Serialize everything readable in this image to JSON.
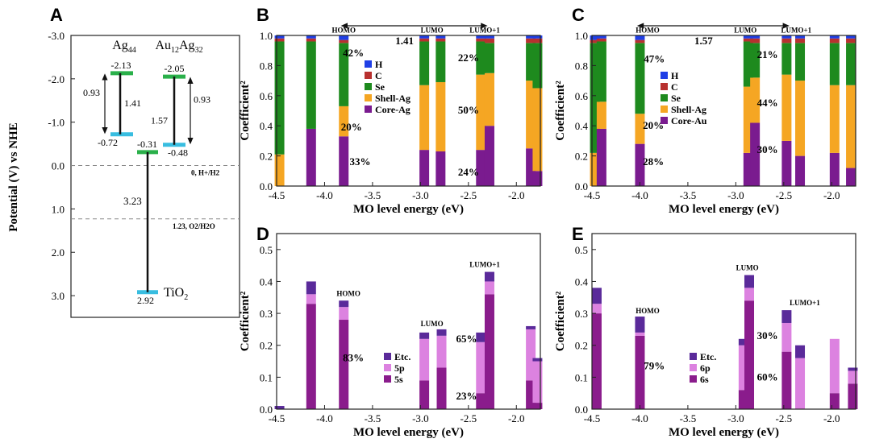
{
  "figure": {
    "panel_letters": [
      "A",
      "B",
      "C",
      "D",
      "E"
    ]
  },
  "colors": {
    "H": "#1f3fe6",
    "C": "#b8312f",
    "Se": "#1e8a1e",
    "Shell": "#f5a623",
    "Core": "#7a1b8f",
    "Etc": "#5a2a9a",
    "p": "#dc82e0",
    "s": "#8a1c8c",
    "ag_level": "#2ab04a",
    "au_level": "#2ab04a",
    "low_level": "#38bde0"
  },
  "chart_data": [
    {
      "id": "A",
      "type": "energy-level diagram",
      "ylabel": "Potential (V) vs NHE",
      "ylim": [
        -3.0,
        3.5
      ],
      "y_ticks": [
        "-3.0",
        "-2.0",
        "-1.0",
        "0.0",
        "1.0",
        "2.0",
        "3.0"
      ],
      "y_tick_values": [
        -3.0,
        -2.0,
        -1.0,
        0.0,
        1.0,
        2.0,
        3.0
      ],
      "columns": [
        {
          "name": "Ag44",
          "label_main": "Ag",
          "label_sub": "44",
          "homo": -2.13,
          "lumo": -0.72,
          "homo_label": "-2.13",
          "lumo_label": "-0.72",
          "gap": "0.93",
          "span": "1.41"
        },
        {
          "name": "Au12Ag32",
          "label_main": "Au",
          "label_sub1": "12",
          "label_mid": "Ag",
          "label_sub2": "32",
          "homo": -2.05,
          "lumo": -0.48,
          "homo_label": "-2.05",
          "lumo_label": "-0.48",
          "gap": "0.93",
          "span": "1.57"
        }
      ],
      "tio2": {
        "label": "TiO2",
        "label_main": "TiO",
        "label_sub": "2",
        "cb": -0.31,
        "vb": 2.92,
        "cb_label": "-0.31",
        "vb_label": "2.92",
        "gap": "3.23"
      },
      "reference_lines": [
        {
          "value": 0.0,
          "label": "0, H+/H2"
        },
        {
          "value": 1.23,
          "label": "1.23, O2/H2O"
        }
      ]
    },
    {
      "id": "B",
      "type": "stacked-bar",
      "xlabel": "MO level energy (eV)",
      "ylabel": "Coefficient²",
      "xlim": [
        -4.5,
        -1.75
      ],
      "ylim": [
        0,
        1.0
      ],
      "x_ticks": [
        "-4.5",
        "-4.0",
        "-3.5",
        "-3.0",
        "-2.5",
        "-2.0"
      ],
      "y_ticks": [
        "0.0",
        "0.2",
        "0.4",
        "0.6",
        "0.8",
        "1.0"
      ],
      "series_names": [
        "Core-Ag",
        "Shell-Ag",
        "Se",
        "C",
        "H"
      ],
      "bars": [
        {
          "x": -4.47,
          "values": [
            0.0,
            0.21,
            0.75,
            0.02,
            0.02
          ]
        },
        {
          "x": -4.14,
          "values": [
            0.38,
            0.0,
            0.58,
            0.02,
            0.02
          ]
        },
        {
          "x": -3.8,
          "values": [
            0.33,
            0.2,
            0.42,
            0.02,
            0.03
          ]
        },
        {
          "x": -2.96,
          "values": [
            0.24,
            0.43,
            0.29,
            0.02,
            0.02
          ]
        },
        {
          "x": -2.79,
          "values": [
            0.23,
            0.46,
            0.27,
            0.02,
            0.02
          ]
        },
        {
          "x": -2.37,
          "values": [
            0.24,
            0.5,
            0.22,
            0.02,
            0.02
          ]
        },
        {
          "x": -2.28,
          "values": [
            0.4,
            0.35,
            0.2,
            0.03,
            0.02
          ]
        },
        {
          "x": -1.85,
          "values": [
            0.25,
            0.45,
            0.25,
            0.03,
            0.02
          ]
        },
        {
          "x": -1.78,
          "values": [
            0.1,
            0.55,
            0.3,
            0.03,
            0.02
          ]
        }
      ],
      "annotations": {
        "homo": "HOMO",
        "lumo": "LUMO",
        "lumo1": "LUMO+1",
        "gap": "1.41"
      },
      "percents": [
        "42%",
        "20%",
        "33%",
        "22%",
        "50%",
        "24%"
      ],
      "legend": [
        "H",
        "C",
        "Se",
        "Shell-Ag",
        "Core-Ag"
      ]
    },
    {
      "id": "C",
      "type": "stacked-bar",
      "xlabel": "MO level energy (eV)",
      "ylabel": "Coefficient²",
      "xlim": [
        -4.5,
        -1.75
      ],
      "ylim": [
        0,
        1.0
      ],
      "x_ticks": [
        "-4.5",
        "-4.0",
        "-3.5",
        "-3.0",
        "-2.5",
        "-2.0"
      ],
      "y_ticks": [
        "0.0",
        "0.2",
        "0.4",
        "0.6",
        "0.8",
        "1.0"
      ],
      "series_names": [
        "Core-Au",
        "Shell-Ag",
        "Se",
        "C",
        "H"
      ],
      "bars": [
        {
          "x": -4.47,
          "values": [
            0.0,
            0.22,
            0.73,
            0.02,
            0.03
          ]
        },
        {
          "x": -4.4,
          "values": [
            0.38,
            0.18,
            0.4,
            0.02,
            0.02
          ]
        },
        {
          "x": -4.0,
          "values": [
            0.28,
            0.2,
            0.47,
            0.02,
            0.03
          ]
        },
        {
          "x": -2.87,
          "values": [
            0.22,
            0.44,
            0.3,
            0.02,
            0.02
          ]
        },
        {
          "x": -2.8,
          "values": [
            0.42,
            0.3,
            0.23,
            0.03,
            0.02
          ]
        },
        {
          "x": -2.47,
          "values": [
            0.3,
            0.44,
            0.21,
            0.03,
            0.02
          ]
        },
        {
          "x": -2.33,
          "values": [
            0.2,
            0.5,
            0.25,
            0.03,
            0.02
          ]
        },
        {
          "x": -1.97,
          "values": [
            0.22,
            0.45,
            0.28,
            0.03,
            0.02
          ]
        },
        {
          "x": -1.8,
          "values": [
            0.12,
            0.55,
            0.28,
            0.03,
            0.02
          ]
        }
      ],
      "annotations": {
        "homo": "HOMO",
        "lumo": "LUMO",
        "lumo1": "LUMO+1",
        "gap": "1.57"
      },
      "percents": [
        "47%",
        "20%",
        "28%",
        "21%",
        "44%",
        "30%"
      ],
      "legend": [
        "H",
        "C",
        "Se",
        "Shell-Ag",
        "Core-Au"
      ]
    },
    {
      "id": "D",
      "type": "stacked-bar",
      "xlabel": "MO level energy (eV)",
      "ylabel": "Coefficient²",
      "xlim": [
        -4.5,
        -1.75
      ],
      "ylim": [
        0,
        0.55
      ],
      "x_ticks": [
        "-4.5",
        "-4.0",
        "-3.5",
        "-3.0",
        "-2.5",
        "-2.0"
      ],
      "y_ticks": [
        "0.0",
        "0.1",
        "0.2",
        "0.3",
        "0.4",
        "0.5"
      ],
      "series_names": [
        "5s",
        "5p",
        "Etc."
      ],
      "bars": [
        {
          "x": -4.47,
          "values": [
            0.0,
            0.0,
            0.01
          ]
        },
        {
          "x": -4.14,
          "values": [
            0.33,
            0.03,
            0.04
          ]
        },
        {
          "x": -3.8,
          "values": [
            0.28,
            0.04,
            0.02
          ]
        },
        {
          "x": -2.96,
          "values": [
            0.09,
            0.13,
            0.02
          ]
        },
        {
          "x": -2.78,
          "values": [
            0.13,
            0.1,
            0.02
          ]
        },
        {
          "x": -2.37,
          "values": [
            0.05,
            0.16,
            0.03
          ]
        },
        {
          "x": -2.28,
          "values": [
            0.36,
            0.04,
            0.03
          ]
        },
        {
          "x": -1.85,
          "values": [
            0.09,
            0.16,
            0.01
          ]
        },
        {
          "x": -1.78,
          "values": [
            0.02,
            0.13,
            0.01
          ]
        }
      ],
      "annotations": {
        "homo": "HOMO",
        "lumo": "LUMO",
        "lumo1": "LUMO+1"
      },
      "percents": [
        "83%",
        "65%",
        "23%"
      ],
      "legend": [
        "Etc.",
        "5p",
        "5s"
      ]
    },
    {
      "id": "E",
      "type": "stacked-bar",
      "xlabel": "MO level energy (eV)",
      "ylabel": "Coefficient²",
      "xlim": [
        -4.5,
        -1.75
      ],
      "ylim": [
        0,
        0.55
      ],
      "x_ticks": [
        "-4.5",
        "-4.0",
        "-3.5",
        "-3.0",
        "-2.5",
        "-2.0"
      ],
      "y_ticks": [
        "0.0",
        "0.1",
        "0.2",
        "0.3",
        "0.4",
        "0.5"
      ],
      "series_names": [
        "6s",
        "6p",
        "Etc."
      ],
      "bars": [
        {
          "x": -4.45,
          "values": [
            0.3,
            0.03,
            0.05
          ]
        },
        {
          "x": -4.0,
          "values": [
            0.23,
            0.01,
            0.05
          ]
        },
        {
          "x": -2.92,
          "values": [
            0.06,
            0.14,
            0.02
          ]
        },
        {
          "x": -2.86,
          "values": [
            0.34,
            0.04,
            0.04
          ]
        },
        {
          "x": -2.47,
          "values": [
            0.18,
            0.09,
            0.04
          ]
        },
        {
          "x": -2.33,
          "values": [
            0.0,
            0.16,
            0.04
          ]
        },
        {
          "x": -1.97,
          "values": [
            0.05,
            0.17,
            0.0
          ]
        },
        {
          "x": -1.78,
          "values": [
            0.08,
            0.04,
            0.01
          ]
        }
      ],
      "annotations": {
        "homo": "HOMO",
        "lumo": "LUMO",
        "lumo1": "LUMO+1"
      },
      "percents": [
        "79%",
        "30%",
        "60%"
      ],
      "legend": [
        "Etc.",
        "6p",
        "6s"
      ]
    }
  ]
}
